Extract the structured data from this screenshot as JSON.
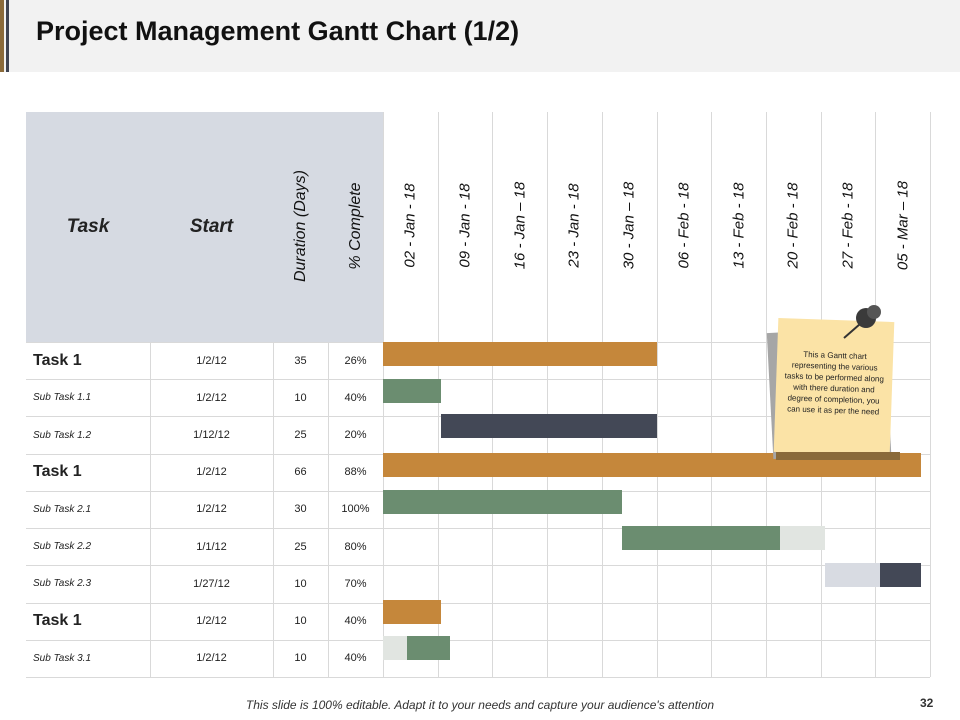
{
  "header": {
    "title": "Project Management Gantt Chart (1/2)"
  },
  "table": {
    "columns": [
      "Task",
      "Start",
      "Duration (Days)",
      "% Complete"
    ],
    "weeks": [
      "02 - Jan - 18",
      "09 - Jan - 18",
      "16 - Jan – 18",
      "23 - Jan - 18",
      "30 - Jan – 18",
      "06 - Feb - 18",
      "13 - Feb - 18",
      "20 - Feb - 18",
      "27 - Feb - 18",
      "05 - Mar – 18"
    ],
    "rows": [
      [
        "Task 1",
        "1/2/12",
        "35",
        "26%"
      ],
      [
        "Sub Task 1.1",
        "1/2/12",
        "10",
        "40%"
      ],
      [
        "Sub Task 1.2",
        "1/12/12",
        "25",
        "20%"
      ],
      [
        "Task 1",
        "1/2/12",
        "66",
        "88%"
      ],
      [
        "Sub Task 2.1",
        "1/2/12",
        "30",
        "100%"
      ],
      [
        "Sub Task 2.2",
        "1/1/12",
        "25",
        "80%"
      ],
      [
        "Sub Task 2.3",
        "1/27/12",
        "10",
        "70%"
      ],
      [
        "Task 1",
        "1/2/12",
        "10",
        "40%"
      ],
      [
        "Sub Task 3.1",
        "1/2/12",
        "10",
        "40%"
      ]
    ]
  },
  "note": "This a Gantt chart representing the various tasks to be performed along with there duration and degree of completion, you can use it as per the need",
  "footer": "This slide is 100% editable. Adapt it to your needs and capture your audience's attention",
  "page_number": "32"
}
